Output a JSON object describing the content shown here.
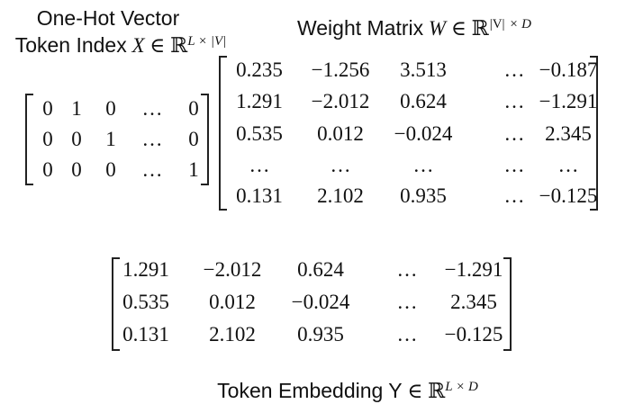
{
  "labels": {
    "one_hot_title": "One-Hot Vector",
    "token_index_text": "Token Index",
    "token_index_var": "X",
    "in_symbol": "∈",
    "reals": "ℝ",
    "token_index_sup": "L × |V|",
    "weight_text": "Weight Matrix",
    "weight_var": "W",
    "weight_sup_base": "|V|",
    "weight_sup_rest": " × D",
    "embedding_text": "Token Embedding Y",
    "embedding_sup": "L × D"
  },
  "matrices": {
    "one_hot": [
      [
        "0",
        "1",
        "0",
        "…",
        "0"
      ],
      [
        "0",
        "0",
        "1",
        "…",
        "0"
      ],
      [
        "0",
        "0",
        "0",
        "…",
        "1"
      ]
    ],
    "weight": [
      [
        "0.235",
        "−1.256",
        "3.513",
        "…",
        "−0.187"
      ],
      [
        "1.291",
        "−2.012",
        "0.624",
        "…",
        "−1.291"
      ],
      [
        "0.535",
        "0.012",
        "−0.024",
        "…",
        "2.345"
      ],
      [
        "…",
        "…",
        "…",
        "…",
        "…"
      ],
      [
        "0.131",
        "2.102",
        "0.935",
        "…",
        "−0.125"
      ]
    ],
    "embedding": [
      [
        "1.291",
        "−2.012",
        "0.624",
        "…",
        "−1.291"
      ],
      [
        "0.535",
        "0.012",
        "−0.024",
        "…",
        "2.345"
      ],
      [
        "0.131",
        "2.102",
        "0.935",
        "…",
        "−0.125"
      ]
    ]
  }
}
